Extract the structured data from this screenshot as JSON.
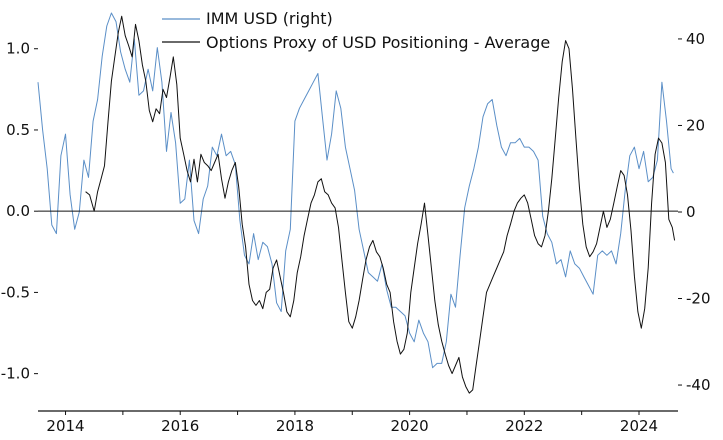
{
  "chart_data": {
    "type": "line",
    "title": "",
    "xlabel": "",
    "ylabel": "",
    "x_ticks": [
      "2014",
      "2016",
      "2018",
      "2020",
      "2022",
      "2024"
    ],
    "y_left_ticks": [
      "1.0",
      "0.5",
      "0.0",
      "-0.5",
      "-1.0"
    ],
    "y_right_ticks": [
      "40",
      "20",
      "0",
      "-20",
      "-40"
    ],
    "ylim_left": [
      -1.23,
      1.3
    ],
    "ylim_right": [
      -46,
      49
    ],
    "xlim": [
      2013.52,
      2024.68
    ],
    "zero_line": true,
    "legend_position": "top",
    "series": [
      {
        "name": "IMM USD (right)",
        "axis": "right",
        "color": "#5b8fc7",
        "x": [
          2013.52,
          2013.6,
          2013.68,
          2013.76,
          2013.84,
          2013.92,
          2014.0,
          2014.08,
          2014.16,
          2014.24,
          2014.32,
          2014.4,
          2014.48,
          2014.56,
          2014.64,
          2014.72,
          2014.8,
          2014.88,
          2014.96,
          2015.04,
          2015.12,
          2015.2,
          2015.28,
          2015.36,
          2015.44,
          2015.52,
          2015.6,
          2015.68,
          2015.76,
          2015.84,
          2015.92,
          2016.0,
          2016.08,
          2016.16,
          2016.24,
          2016.32,
          2016.4,
          2016.48,
          2016.56,
          2016.64,
          2016.72,
          2016.8,
          2016.88,
          2016.96,
          2017.04,
          2017.12,
          2017.2,
          2017.28,
          2017.36,
          2017.44,
          2017.52,
          2017.6,
          2017.68,
          2017.76,
          2017.84,
          2017.92,
          2018.0,
          2018.08,
          2018.16,
          2018.24,
          2018.32,
          2018.4,
          2018.48,
          2018.56,
          2018.64,
          2018.72,
          2018.8,
          2018.88,
          2018.96,
          2019.04,
          2019.12,
          2019.2,
          2019.28,
          2019.36,
          2019.44,
          2019.52,
          2019.6,
          2019.68,
          2019.76,
          2019.84,
          2019.92,
          2020.0,
          2020.08,
          2020.16,
          2020.24,
          2020.32,
          2020.4,
          2020.48,
          2020.56,
          2020.64,
          2020.72,
          2020.8,
          2020.88,
          2020.96,
          2021.04,
          2021.12,
          2021.2,
          2021.28,
          2021.36,
          2021.44,
          2021.52,
          2021.6,
          2021.68,
          2021.76,
          2021.84,
          2021.92,
          2022.0,
          2022.08,
          2022.16,
          2022.24,
          2022.32,
          2022.4,
          2022.48,
          2022.56,
          2022.64,
          2022.72,
          2022.8,
          2022.88,
          2022.96,
          2023.04,
          2023.12,
          2023.2,
          2023.28,
          2023.36,
          2023.44,
          2023.52,
          2023.6,
          2023.68,
          2023.76,
          2023.84,
          2023.92,
          2024.0,
          2024.08,
          2024.16,
          2024.24,
          2024.32,
          2024.4,
          2024.48,
          2024.56,
          2024.6
        ],
        "values": [
          30,
          19,
          10,
          -3,
          -5,
          13,
          18,
          4,
          -4,
          0,
          12,
          8,
          21,
          26,
          36,
          43,
          46,
          44,
          37,
          33,
          30,
          40,
          27,
          28,
          33,
          28,
          38,
          30,
          14,
          23,
          16,
          2,
          3,
          12,
          -2,
          -5,
          3,
          6,
          15,
          13,
          18,
          13,
          14,
          11,
          -2,
          -10,
          -12,
          -5,
          -11,
          -7,
          -8,
          -12,
          -21,
          -23,
          -9,
          -4,
          21,
          24,
          26,
          28,
          30,
          32,
          22,
          12,
          18,
          28,
          24,
          15,
          10,
          5,
          -4,
          -9,
          -14,
          -15,
          -16,
          -12,
          -18,
          -22,
          -22,
          -23,
          -24,
          -28,
          -30,
          -25,
          -28,
          -30,
          -36,
          -35,
          -35,
          -30,
          -19,
          -22,
          -10,
          1,
          6,
          10,
          15,
          22,
          25,
          26,
          20,
          15,
          13,
          16,
          16,
          17,
          15,
          15,
          14,
          12,
          -1,
          -5,
          -7,
          -12,
          -11,
          -15,
          -9,
          -12,
          -13,
          -15,
          -17,
          -19,
          -10,
          -9,
          -10,
          -9,
          -12,
          -5,
          5,
          13,
          15,
          10,
          14,
          7,
          8,
          12,
          30,
          21,
          10,
          9
        ]
      },
      {
        "name": "Options Proxy of USD Positioning - Average",
        "axis": "left",
        "color": "#111111",
        "x": [
          2014.35,
          2014.42,
          2014.5,
          2014.56,
          2014.62,
          2014.68,
          2014.74,
          2014.8,
          2014.86,
          2014.92,
          2014.98,
          2015.04,
          2015.1,
          2015.16,
          2015.22,
          2015.28,
          2015.34,
          2015.4,
          2015.46,
          2015.52,
          2015.58,
          2015.64,
          2015.7,
          2015.76,
          2015.82,
          2015.88,
          2015.94,
          2016.0,
          2016.06,
          2016.12,
          2016.18,
          2016.24,
          2016.3,
          2016.36,
          2016.42,
          2016.48,
          2016.54,
          2016.6,
          2016.66,
          2016.72,
          2016.78,
          2016.84,
          2016.9,
          2016.96,
          2017.02,
          2017.08,
          2017.14,
          2017.2,
          2017.26,
          2017.32,
          2017.38,
          2017.44,
          2017.5,
          2017.56,
          2017.62,
          2017.68,
          2017.74,
          2017.8,
          2017.86,
          2017.92,
          2017.98,
          2018.04,
          2018.1,
          2018.16,
          2018.22,
          2018.28,
          2018.34,
          2018.4,
          2018.46,
          2018.52,
          2018.58,
          2018.64,
          2018.7,
          2018.76,
          2018.82,
          2018.88,
          2018.94,
          2019.0,
          2019.06,
          2019.12,
          2019.18,
          2019.24,
          2019.3,
          2019.36,
          2019.42,
          2019.48,
          2019.54,
          2019.6,
          2019.66,
          2019.72,
          2019.78,
          2019.84,
          2019.9,
          2019.96,
          2020.02,
          2020.08,
          2020.14,
          2020.2,
          2020.26,
          2020.32,
          2020.38,
          2020.44,
          2020.5,
          2020.56,
          2020.62,
          2020.68,
          2020.74,
          2020.8,
          2020.86,
          2020.92,
          2020.98,
          2021.04,
          2021.1,
          2021.16,
          2021.22,
          2021.28,
          2021.34,
          2021.4,
          2021.46,
          2021.52,
          2021.58,
          2021.64,
          2021.7,
          2021.76,
          2021.82,
          2021.88,
          2021.94,
          2022.0,
          2022.06,
          2022.12,
          2022.18,
          2022.24,
          2022.3,
          2022.36,
          2022.42,
          2022.48,
          2022.54,
          2022.6,
          2022.66,
          2022.72,
          2022.78,
          2022.84,
          2022.9,
          2022.96,
          2023.02,
          2023.08,
          2023.14,
          2023.2,
          2023.26,
          2023.32,
          2023.38,
          2023.44,
          2023.5,
          2023.56,
          2023.62,
          2023.68,
          2023.74,
          2023.8,
          2023.86,
          2023.92,
          2023.98,
          2024.04,
          2024.1,
          2024.16,
          2024.22,
          2024.28,
          2024.34,
          2024.4,
          2024.46,
          2024.52,
          2024.58,
          2024.62
        ],
        "values": [
          0.12,
          0.1,
          0.0,
          0.12,
          0.2,
          0.28,
          0.55,
          0.8,
          0.95,
          1.1,
          1.2,
          1.08,
          1.02,
          0.95,
          1.15,
          1.05,
          0.9,
          0.8,
          0.62,
          0.55,
          0.63,
          0.6,
          0.75,
          0.7,
          0.82,
          0.95,
          0.78,
          0.45,
          0.35,
          0.25,
          0.18,
          0.32,
          0.18,
          0.35,
          0.3,
          0.28,
          0.25,
          0.3,
          0.35,
          0.2,
          0.08,
          0.18,
          0.25,
          0.3,
          0.15,
          -0.08,
          -0.22,
          -0.45,
          -0.55,
          -0.58,
          -0.55,
          -0.6,
          -0.5,
          -0.48,
          -0.35,
          -0.3,
          -0.4,
          -0.5,
          -0.62,
          -0.65,
          -0.55,
          -0.38,
          -0.28,
          -0.15,
          -0.05,
          0.05,
          0.1,
          0.18,
          0.2,
          0.12,
          0.1,
          0.05,
          0.02,
          -0.1,
          -0.3,
          -0.5,
          -0.68,
          -0.72,
          -0.65,
          -0.55,
          -0.42,
          -0.3,
          -0.22,
          -0.18,
          -0.25,
          -0.28,
          -0.35,
          -0.45,
          -0.5,
          -0.68,
          -0.8,
          -0.88,
          -0.85,
          -0.75,
          -0.5,
          -0.35,
          -0.2,
          -0.08,
          0.05,
          -0.15,
          -0.35,
          -0.55,
          -0.7,
          -0.8,
          -0.88,
          -0.95,
          -1.0,
          -0.95,
          -0.9,
          -1.02,
          -1.08,
          -1.12,
          -1.1,
          -0.95,
          -0.8,
          -0.65,
          -0.5,
          -0.45,
          -0.4,
          -0.35,
          -0.3,
          -0.25,
          -0.15,
          -0.08,
          0.0,
          0.05,
          0.08,
          0.1,
          0.05,
          -0.05,
          -0.15,
          -0.2,
          -0.22,
          -0.15,
          0.0,
          0.2,
          0.45,
          0.7,
          0.92,
          1.05,
          1.0,
          0.75,
          0.45,
          0.15,
          -0.08,
          -0.22,
          -0.28,
          -0.25,
          -0.2,
          -0.1,
          0.0,
          -0.1,
          -0.05,
          0.05,
          0.15,
          0.25,
          0.22,
          0.1,
          -0.12,
          -0.4,
          -0.62,
          -0.72,
          -0.6,
          -0.35,
          0.05,
          0.35,
          0.45,
          0.42,
          0.3,
          -0.05,
          -0.1,
          -0.18
        ]
      }
    ]
  }
}
